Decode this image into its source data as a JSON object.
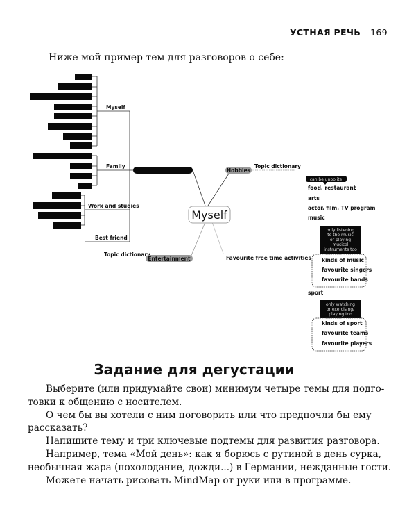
{
  "header": {
    "section": "УСТНАЯ РЕЧЬ",
    "page": "169"
  },
  "intro": "Ниже мой пример тем для разговоров о себе:",
  "mindmap": {
    "center": "Myself",
    "left_branches": [
      {
        "label": "Myself",
        "hidden_items": 8
      },
      {
        "label": "Family",
        "hidden_items": 4
      },
      {
        "label": "Work and studies",
        "hidden_items": 4
      },
      {
        "label": "Best friend",
        "hidden_items": 0
      }
    ],
    "entertainment": {
      "label": "Entertainment",
      "note": "Topic dictionary"
    },
    "hobbies": {
      "label": "Hobbies",
      "note": "Topic dictionary"
    },
    "favourite": "Favourite free time activities",
    "callout_unpolite": "can be unpolite",
    "topics": [
      "food, restaurant",
      "arts",
      "actor, film, TV program",
      "music"
    ],
    "music_note": [
      "only listening",
      "to the music",
      "or playing",
      "musical",
      "instruments too"
    ],
    "music_items": [
      "kinds of music",
      "favourite singers",
      "favourite bands"
    ],
    "sport": "sport",
    "sport_note": [
      "only watching",
      "or exercising/",
      "playing too"
    ],
    "sport_items": [
      "kinds of sport",
      "favourite teams",
      "favourite players"
    ]
  },
  "task": {
    "title": "Задание для дегустации",
    "lines": [
      "Выберите (или придумайте свои) минимум четыре темы для подго-",
      "товки к общению с носителем.",
      "О чем бы вы хотели с ним поговорить или что предпочли бы ему",
      "рассказать?",
      "Напишите тему и три ключевые подтемы для развития разговора.",
      "Например, тема «Мой день»: как я борюсь с рутиной в день сурка,",
      "необычная жара (похолодание, дожди...) в Германии, нежданные гости.",
      "Можете начать рисовать MindMap от руки или в программе."
    ]
  }
}
